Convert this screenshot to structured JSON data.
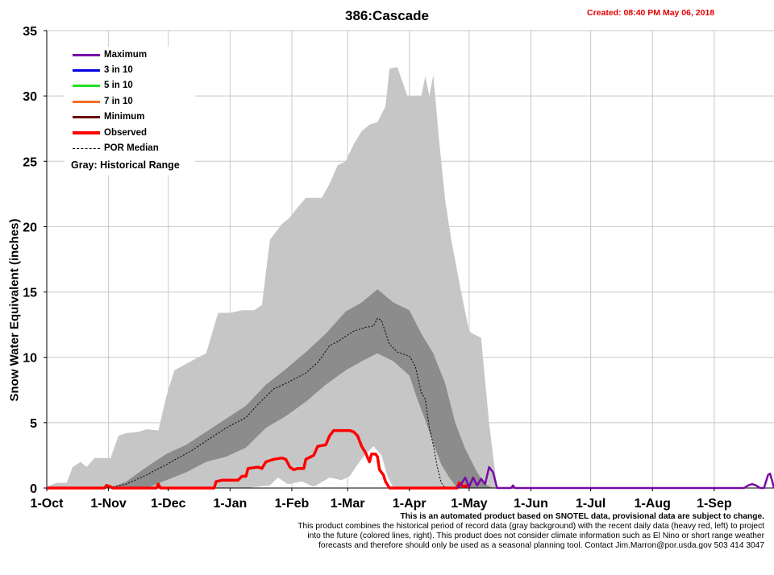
{
  "chart_data": {
    "type": "area",
    "title": "386:Cascade",
    "created": "Created: 08:40 PM May 06, 2018",
    "ylabel": "Snow Water Equivalent (inches)",
    "xlabel": "",
    "ylim": [
      0,
      35
    ],
    "yticks": [
      "0",
      "5",
      "10",
      "15",
      "20",
      "25",
      "30",
      "35"
    ],
    "xlim": [
      0,
      365
    ],
    "xticks": [
      {
        "label": "1-Oct",
        "day": 0
      },
      {
        "label": "1-Nov",
        "day": 31
      },
      {
        "label": "1-Dec",
        "day": 61
      },
      {
        "label": "1-Jan",
        "day": 92
      },
      {
        "label": "1-Feb",
        "day": 123
      },
      {
        "label": "1-Mar",
        "day": 151
      },
      {
        "label": "1-Apr",
        "day": 182
      },
      {
        "label": "1-May",
        "day": 212
      },
      {
        "label": "1-Jun",
        "day": 243
      },
      {
        "label": "1-Jul",
        "day": 273
      },
      {
        "label": "1-Aug",
        "day": 304
      },
      {
        "label": "1-Sep",
        "day": 335
      }
    ],
    "grid": true,
    "legend_position": "top-left",
    "legend": [
      {
        "label": "Maximum",
        "color": "#7a0aa8",
        "style": "solid"
      },
      {
        "label": "3 in 10",
        "color": "#0000e0",
        "style": "solid"
      },
      {
        "label": "5 in 10",
        "color": "#22e022",
        "style": "solid"
      },
      {
        "label": "7 in 10",
        "color": "#f07020",
        "style": "solid"
      },
      {
        "label": "Minimum",
        "color": "#6b0000",
        "style": "solid"
      },
      {
        "label": "Observed",
        "color": "#ff0000",
        "style": "thick"
      },
      {
        "label": "POR Median",
        "color": "#000000",
        "style": "dashed"
      }
    ],
    "legend_note": "Gray: Historical Range",
    "historical_range": {
      "max": [
        [
          0,
          0.1
        ],
        [
          5,
          0.4
        ],
        [
          10,
          0.4
        ],
        [
          13,
          1.6
        ],
        [
          17,
          2
        ],
        [
          20,
          1.6
        ],
        [
          24,
          2.3
        ],
        [
          32,
          2.3
        ],
        [
          36,
          4
        ],
        [
          40,
          4.2
        ],
        [
          46,
          4.3
        ],
        [
          50,
          4.5
        ],
        [
          56,
          4.4
        ],
        [
          60,
          7
        ],
        [
          64,
          9
        ],
        [
          70,
          9.5
        ],
        [
          76,
          10
        ],
        [
          80,
          10.3
        ],
        [
          86,
          13.4
        ],
        [
          92,
          13.4
        ],
        [
          98,
          13.6
        ],
        [
          104,
          13.6
        ],
        [
          108,
          14
        ],
        [
          112,
          19
        ],
        [
          118,
          20.2
        ],
        [
          122,
          20.7
        ],
        [
          126,
          21.5
        ],
        [
          130,
          22.2
        ],
        [
          138,
          22.2
        ],
        [
          142,
          23.3
        ],
        [
          146,
          24.7
        ],
        [
          150,
          25
        ],
        [
          154,
          26.3
        ],
        [
          158,
          27.3
        ],
        [
          162,
          27.8
        ],
        [
          166,
          28
        ],
        [
          170,
          29.2
        ],
        [
          172,
          32.1
        ],
        [
          176,
          32.2
        ],
        [
          178,
          31.3
        ],
        [
          181,
          30
        ],
        [
          188,
          30
        ],
        [
          190,
          31.5
        ],
        [
          192,
          30
        ],
        [
          194,
          31.6
        ],
        [
          197,
          26.5
        ],
        [
          200,
          22
        ],
        [
          203,
          19
        ],
        [
          208,
          15
        ],
        [
          212,
          12
        ],
        [
          214,
          11.8
        ],
        [
          218,
          11.5
        ],
        [
          222,
          5
        ],
        [
          226,
          0
        ]
      ],
      "min": [
        [
          0,
          0
        ],
        [
          100,
          0
        ],
        [
          112,
          0.2
        ],
        [
          116,
          0.8
        ],
        [
          121,
          0.3
        ],
        [
          128,
          0.5
        ],
        [
          134,
          0.1
        ],
        [
          142,
          0.8
        ],
        [
          148,
          0.6
        ],
        [
          152,
          0.9
        ],
        [
          156,
          1.8
        ],
        [
          160,
          2.6
        ],
        [
          164,
          3.2
        ],
        [
          168,
          2.5
        ],
        [
          171,
          0.9
        ],
        [
          174,
          0
        ],
        [
          365,
          0
        ]
      ]
    },
    "interquartile_band": {
      "upper": [
        [
          32,
          0
        ],
        [
          40,
          0.5
        ],
        [
          50,
          1.6
        ],
        [
          60,
          2.6
        ],
        [
          70,
          3.3
        ],
        [
          80,
          4.3
        ],
        [
          90,
          5.3
        ],
        [
          100,
          6.3
        ],
        [
          110,
          7.9
        ],
        [
          120,
          9.1
        ],
        [
          130,
          10.4
        ],
        [
          140,
          11.8
        ],
        [
          150,
          13.5
        ],
        [
          158,
          14.2
        ],
        [
          166,
          15.2
        ],
        [
          174,
          14.2
        ],
        [
          182,
          13.6
        ],
        [
          188,
          11.8
        ],
        [
          194,
          10.3
        ],
        [
          200,
          8
        ],
        [
          205,
          5
        ],
        [
          210,
          3
        ],
        [
          216,
          1.2
        ],
        [
          220,
          0.3
        ],
        [
          224,
          0
        ]
      ],
      "lower": [
        [
          32,
          0
        ],
        [
          50,
          0
        ],
        [
          60,
          0.6
        ],
        [
          70,
          1.2
        ],
        [
          80,
          2
        ],
        [
          90,
          2.4
        ],
        [
          100,
          3.1
        ],
        [
          110,
          4.6
        ],
        [
          120,
          5.5
        ],
        [
          130,
          6.6
        ],
        [
          140,
          7.9
        ],
        [
          150,
          9
        ],
        [
          158,
          9.7
        ],
        [
          166,
          10.3
        ],
        [
          174,
          9.7
        ],
        [
          182,
          8.6
        ],
        [
          186,
          6.8
        ],
        [
          190,
          5.2
        ],
        [
          194,
          3.4
        ],
        [
          198,
          1.8
        ],
        [
          202,
          0.8
        ],
        [
          206,
          0
        ]
      ]
    },
    "series": [
      {
        "name": "POR Median",
        "color": "#000000",
        "style": "dashed",
        "points": [
          [
            30,
            0
          ],
          [
            40,
            0.3
          ],
          [
            50,
            1
          ],
          [
            60,
            1.8
          ],
          [
            66,
            2.3
          ],
          [
            72,
            2.8
          ],
          [
            80,
            3.6
          ],
          [
            90,
            4.6
          ],
          [
            100,
            5.4
          ],
          [
            106,
            6.4
          ],
          [
            114,
            7.6
          ],
          [
            120,
            8
          ],
          [
            130,
            8.8
          ],
          [
            136,
            9.6
          ],
          [
            142,
            10.9
          ],
          [
            146,
            11.2
          ],
          [
            150,
            11.6
          ],
          [
            154,
            12
          ],
          [
            160,
            12.3
          ],
          [
            164,
            12.4
          ],
          [
            166,
            13
          ],
          [
            168,
            12.8
          ],
          [
            172,
            11
          ],
          [
            176,
            10.4
          ],
          [
            182,
            10.1
          ],
          [
            185,
            9.3
          ],
          [
            188,
            7.3
          ],
          [
            190,
            6.8
          ],
          [
            192,
            4.6
          ],
          [
            194,
            3.3
          ],
          [
            196,
            1.6
          ],
          [
            198,
            0.4
          ],
          [
            200,
            0
          ]
        ]
      },
      {
        "name": "Observed",
        "color": "#ff0000",
        "style": "thick",
        "points": [
          [
            0,
            0
          ],
          [
            29,
            0
          ],
          [
            30,
            0.2
          ],
          [
            32,
            0.1
          ],
          [
            33,
            0
          ],
          [
            55,
            0
          ],
          [
            56,
            0.3
          ],
          [
            57,
            0
          ],
          [
            84,
            0
          ],
          [
            85,
            0.5
          ],
          [
            88,
            0.6
          ],
          [
            96,
            0.6
          ],
          [
            98,
            0.9
          ],
          [
            100,
            0.9
          ],
          [
            101,
            1.5
          ],
          [
            106,
            1.6
          ],
          [
            108,
            1.5
          ],
          [
            110,
            2
          ],
          [
            114,
            2.2
          ],
          [
            118,
            2.3
          ],
          [
            120,
            2.2
          ],
          [
            122,
            1.6
          ],
          [
            124,
            1.4
          ],
          [
            126,
            1.5
          ],
          [
            129,
            1.5
          ],
          [
            130,
            2.2
          ],
          [
            134,
            2.5
          ],
          [
            136,
            3.2
          ],
          [
            140,
            3.3
          ],
          [
            142,
            4
          ],
          [
            144,
            4.4
          ],
          [
            152,
            4.4
          ],
          [
            154,
            4.3
          ],
          [
            156,
            4
          ],
          [
            158,
            3.2
          ],
          [
            160,
            2.7
          ],
          [
            162,
            2
          ],
          [
            163,
            2.6
          ],
          [
            165,
            2.6
          ],
          [
            166,
            2.4
          ],
          [
            167,
            1.4
          ],
          [
            169,
            1
          ],
          [
            170,
            0.5
          ],
          [
            172,
            0
          ],
          [
            206,
            0
          ],
          [
            207,
            0.4
          ],
          [
            209,
            0.1
          ],
          [
            211,
            0.2
          ],
          [
            212,
            0
          ]
        ]
      },
      {
        "name": "Maximum",
        "color": "#7a0aa8",
        "style": "solid",
        "points": [
          [
            206,
            0
          ],
          [
            208,
            0.3
          ],
          [
            210,
            0.8
          ],
          [
            212,
            0.1
          ],
          [
            214,
            0.8
          ],
          [
            216,
            0.2
          ],
          [
            218,
            0.7
          ],
          [
            220,
            0.3
          ],
          [
            222,
            1.6
          ],
          [
            224,
            1.2
          ],
          [
            226,
            0
          ],
          [
            233,
            0
          ],
          [
            234,
            0.2
          ],
          [
            235,
            0
          ],
          [
            350,
            0
          ],
          [
            352,
            0.2
          ],
          [
            354,
            0.3
          ],
          [
            356,
            0.2
          ],
          [
            358,
            0
          ],
          [
            360,
            0
          ],
          [
            362,
            1
          ],
          [
            363,
            1.1
          ],
          [
            364,
            0.6
          ],
          [
            365,
            0
          ]
        ]
      }
    ]
  },
  "footnote": {
    "headline": "This is an automated product based on SNOTEL data, provisional data are subject to change.",
    "line1": "This product combines the historical period of record data (gray background) with the recent daily data (heavy red, left) to project",
    "line2": "into the future (colored lines, right). This product does not consider climate information such as El Nino or short range weather",
    "line3": "forecasts and therefore should only be used as a seasonal planning tool. Contact Jim.Marron@por.usda.gov 503 414 3047"
  }
}
